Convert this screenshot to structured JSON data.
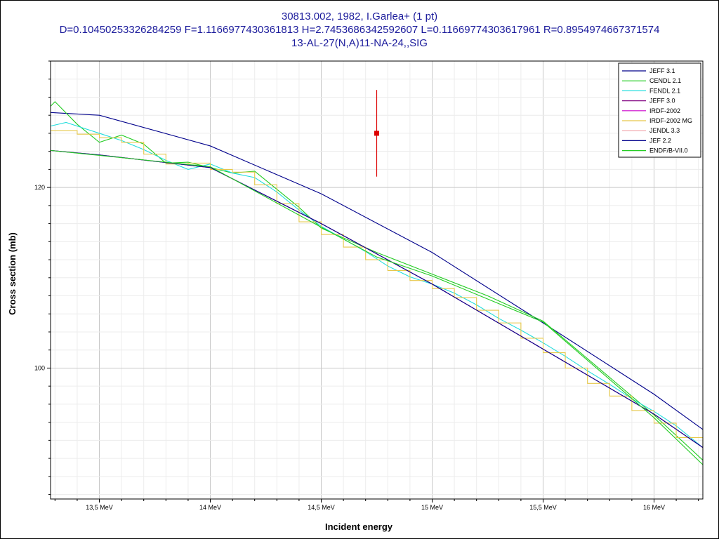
{
  "chart_data": {
    "type": "line",
    "title_lines": [
      "30813.002, 1982, I.Garlea+ (1 pt)",
      "D=0.10450253326284259 F=1.1166977430361813 H=2.7453686342592607 L=0.11669774303617961 R=0.8954974667371574",
      "13-AL-27(N,A)11-NA-24,,SIG"
    ],
    "xlabel": "Incident energy",
    "ylabel": "Cross section (mb)",
    "xlim": [
      13.28,
      16.22
    ],
    "ylim": [
      85.5,
      134
    ],
    "x_ticks": [
      {
        "value": 13.5,
        "label": "13,5 MeV"
      },
      {
        "value": 14.0,
        "label": "14 MeV"
      },
      {
        "value": 14.5,
        "label": "14,5 MeV"
      },
      {
        "value": 15.0,
        "label": "15 MeV"
      },
      {
        "value": 15.5,
        "label": "15,5 MeV"
      },
      {
        "value": 16.0,
        "label": "16 MeV"
      }
    ],
    "y_ticks": [
      {
        "value": 100,
        "label": "100"
      },
      {
        "value": 120,
        "label": "120"
      }
    ],
    "grid": true,
    "legend_position": "top-right",
    "series": [
      {
        "name": "JEFF 3.1",
        "color": "#00008b",
        "step": false,
        "x": [
          13.28,
          13.5,
          14.0,
          14.5,
          15.0,
          15.5,
          16.0,
          16.22
        ],
        "y": [
          128.3,
          128.0,
          124.6,
          119.3,
          112.8,
          105.0,
          97.1,
          93.2
        ]
      },
      {
        "name": "CENDL 2.1",
        "color": "#22cc22",
        "step": false,
        "x": [
          13.28,
          13.3,
          13.4,
          13.5,
          13.6,
          13.7,
          13.8,
          13.9,
          14.0,
          14.1,
          14.2,
          14.3,
          14.4,
          14.5,
          14.75,
          15.0,
          15.25,
          15.5,
          15.75,
          16.0,
          16.22
        ],
        "y": [
          129.0,
          129.5,
          127.0,
          125.0,
          125.8,
          124.8,
          122.7,
          122.8,
          122.2,
          121.6,
          121.8,
          119.8,
          117.8,
          115.5,
          112.8,
          110.4,
          108.0,
          105.2,
          100.0,
          94.8,
          89.8
        ]
      },
      {
        "name": "FENDL 2.1",
        "color": "#22dddd",
        "step": false,
        "x": [
          13.28,
          13.35,
          13.5,
          13.6,
          13.7,
          13.8,
          13.9,
          14.0,
          14.1,
          14.2,
          14.3,
          14.4,
          14.5,
          14.6,
          14.7,
          14.8,
          14.9,
          15.0,
          15.1,
          15.2,
          15.3,
          15.4,
          15.5,
          15.6,
          15.7,
          15.8,
          15.9,
          16.0,
          16.1,
          16.22
        ],
        "y": [
          126.8,
          127.2,
          126.0,
          125.2,
          124.2,
          123.0,
          122.0,
          122.6,
          121.6,
          121.1,
          119.5,
          117.5,
          115.7,
          114.3,
          112.9,
          111.3,
          110.1,
          109.3,
          108.3,
          107.0,
          105.5,
          104.2,
          102.8,
          101.3,
          99.7,
          98.2,
          96.6,
          95.2,
          93.6,
          91.2
        ]
      },
      {
        "name": "JEFF 3.0",
        "color": "#800080",
        "step": false,
        "x": [
          13.28,
          13.5,
          14.0,
          14.5,
          15.0,
          15.5,
          16.0,
          16.22
        ],
        "y": [
          124.1,
          123.6,
          122.2,
          116.0,
          109.3,
          102.1,
          94.9,
          91.2
        ]
      },
      {
        "name": "IRDF-2002",
        "color": "#cc00cc",
        "step": false,
        "x": [
          13.28,
          13.5,
          14.0,
          14.5,
          15.0,
          15.5,
          16.0,
          16.22
        ],
        "y": [
          124.1,
          123.6,
          122.2,
          116.0,
          109.3,
          102.1,
          94.9,
          91.2
        ]
      },
      {
        "name": "IRDF-2002 MG",
        "color": "#e6c84a",
        "step": true,
        "x": [
          13.28,
          13.4,
          13.5,
          13.6,
          13.7,
          13.8,
          13.9,
          14.0,
          14.1,
          14.2,
          14.3,
          14.4,
          14.5,
          14.6,
          14.7,
          14.8,
          14.9,
          15.0,
          15.1,
          15.2,
          15.3,
          15.4,
          15.5,
          15.6,
          15.7,
          15.8,
          15.9,
          16.0,
          16.1,
          16.22
        ],
        "y": [
          126.3,
          125.9,
          125.5,
          125.0,
          123.7,
          122.6,
          122.7,
          122.0,
          121.7,
          120.3,
          118.2,
          116.2,
          114.8,
          113.4,
          112.0,
          110.8,
          109.7,
          108.8,
          107.8,
          106.4,
          105.0,
          103.3,
          101.7,
          100.0,
          98.3,
          96.9,
          95.3,
          93.9,
          92.3,
          90.9
        ]
      },
      {
        "name": "JENDL 3.3",
        "color": "#f0a0a8",
        "step": false,
        "x": [
          13.28,
          13.5,
          14.0,
          14.5,
          15.0,
          15.5,
          16.0,
          16.22
        ],
        "y": [
          124.1,
          123.6,
          122.2,
          116.0,
          109.3,
          102.1,
          94.9,
          91.2
        ]
      },
      {
        "name": "JEF 2.2",
        "color": "#00008b",
        "step": false,
        "x": [
          13.28,
          13.5,
          14.0,
          14.5,
          15.0,
          15.5,
          16.0,
          16.22
        ],
        "y": [
          124.1,
          123.6,
          122.2,
          116.0,
          109.3,
          102.1,
          94.9,
          91.2
        ]
      },
      {
        "name": "ENDF/B-VII.0",
        "color": "#22cc22",
        "step": false,
        "x": [
          13.28,
          14.0,
          14.5,
          14.75,
          15.0,
          15.5,
          16.0,
          16.22
        ],
        "y": [
          124.1,
          122.3,
          115.6,
          112.3,
          110.2,
          105.1,
          94.5,
          89.3
        ]
      }
    ],
    "points": [
      {
        "x": 14.75,
        "y": 126.0,
        "y_err_low": 121.2,
        "y_err_high": 130.8,
        "color": "#dd0000"
      }
    ]
  }
}
